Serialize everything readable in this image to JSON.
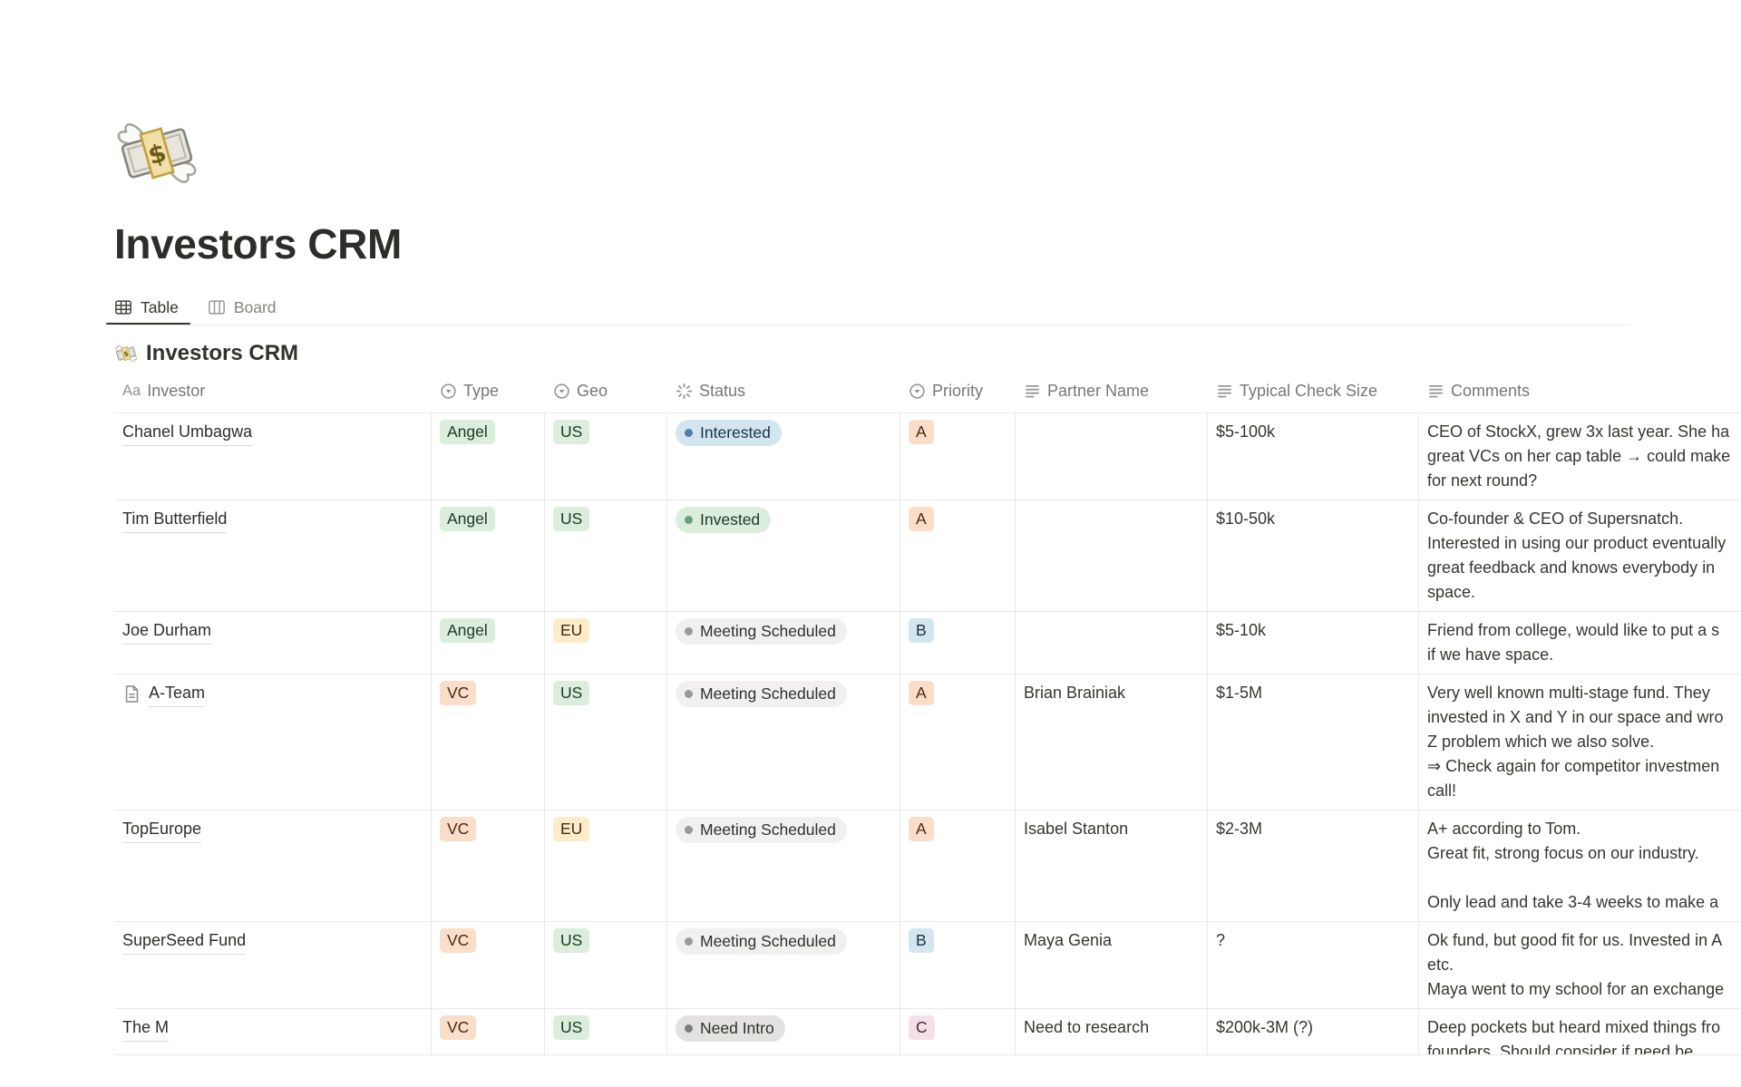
{
  "page": {
    "icon": "money-with-wings-emoji",
    "title": "Investors CRM"
  },
  "tabs": [
    {
      "label": "Table",
      "icon": "table-view-icon",
      "active": true
    },
    {
      "label": "Board",
      "icon": "board-view-icon",
      "active": false
    }
  ],
  "database": {
    "icon": "money-with-wings-emoji",
    "title": "Investors CRM",
    "columns": [
      {
        "label": "Investor",
        "icon": "title-aa-icon"
      },
      {
        "label": "Type",
        "icon": "select-icon"
      },
      {
        "label": "Geo",
        "icon": "select-icon"
      },
      {
        "label": "Status",
        "icon": "status-spinner-icon"
      },
      {
        "label": "Priority",
        "icon": "select-icon"
      },
      {
        "label": "Partner Name",
        "icon": "text-icon"
      },
      {
        "label": "Typical Check Size",
        "icon": "text-icon"
      },
      {
        "label": "Comments",
        "icon": "text-icon"
      }
    ],
    "rows": [
      {
        "investor": "Chanel Umbagwa",
        "has_page_icon": false,
        "type": {
          "label": "Angel",
          "color": "green"
        },
        "geo": {
          "label": "US",
          "color": "green"
        },
        "status": {
          "label": "Interested",
          "color": "blue"
        },
        "priority": {
          "label": "A",
          "color": "orange"
        },
        "partner": "",
        "check_size": "$5-100k",
        "comments": [
          "CEO of StockX, grew 3x last year. She ha",
          "great VCs on her cap table → could make",
          "for next round?"
        ]
      },
      {
        "investor": "Tim Butterfield",
        "has_page_icon": false,
        "type": {
          "label": "Angel",
          "color": "green"
        },
        "geo": {
          "label": "US",
          "color": "green"
        },
        "status": {
          "label": "Invested",
          "color": "green"
        },
        "priority": {
          "label": "A",
          "color": "orange"
        },
        "partner": "",
        "check_size": "$10-50k",
        "comments": [
          "Co-founder & CEO of Supersnatch.",
          "Interested in using our product eventually",
          "great feedback and knows everybody in",
          "space."
        ]
      },
      {
        "investor": "Joe Durham",
        "has_page_icon": false,
        "type": {
          "label": "Angel",
          "color": "green"
        },
        "geo": {
          "label": "EU",
          "color": "yellow"
        },
        "status": {
          "label": "Meeting Scheduled",
          "color": "lightgray"
        },
        "priority": {
          "label": "B",
          "color": "blue"
        },
        "partner": "",
        "check_size": "$5-10k",
        "comments": [
          "Friend from college, would like to put a s",
          "if we have space."
        ]
      },
      {
        "investor": "A-Team",
        "has_page_icon": true,
        "type": {
          "label": "VC",
          "color": "orange"
        },
        "geo": {
          "label": "US",
          "color": "green"
        },
        "status": {
          "label": "Meeting Scheduled",
          "color": "lightgray"
        },
        "priority": {
          "label": "A",
          "color": "orange"
        },
        "partner": "Brian Brainiak",
        "check_size": "$1-5M",
        "comments": [
          "Very well known multi-stage fund. They",
          "invested in X and Y in our space and wro",
          "Z problem which we also solve.",
          "⇒ Check again for competitor investmen",
          "call!"
        ]
      },
      {
        "investor": "TopEurope",
        "has_page_icon": false,
        "type": {
          "label": "VC",
          "color": "orange"
        },
        "geo": {
          "label": "EU",
          "color": "yellow"
        },
        "status": {
          "label": "Meeting Scheduled",
          "color": "lightgray"
        },
        "priority": {
          "label": "A",
          "color": "orange"
        },
        "partner": "Isabel Stanton",
        "check_size": "$2-3M",
        "comments": [
          "A+ according to Tom.",
          "Great fit, strong focus on our industry.",
          "",
          "Only lead and take 3-4 weeks to make a"
        ]
      },
      {
        "investor": "SuperSeed Fund",
        "has_page_icon": false,
        "type": {
          "label": "VC",
          "color": "orange"
        },
        "geo": {
          "label": "US",
          "color": "green"
        },
        "status": {
          "label": "Meeting Scheduled",
          "color": "lightgray"
        },
        "priority": {
          "label": "B",
          "color": "blue"
        },
        "partner": "Maya Genia",
        "check_size": "?",
        "comments": [
          "Ok fund, but good fit for us. Invested in A",
          "etc.",
          "Maya went to my school for an exchange"
        ]
      },
      {
        "investor": "The M",
        "has_page_icon": false,
        "type": {
          "label": "VC",
          "color": "orange"
        },
        "geo": {
          "label": "US",
          "color": "green"
        },
        "status": {
          "label": "Need Intro",
          "color": "gray"
        },
        "priority": {
          "label": "C",
          "color": "pink"
        },
        "partner": "Need to research",
        "check_size": "$200k-3M (?)",
        "comments": [
          "Deep pockets but heard mixed things fro",
          "founders. Should consider if need be."
        ]
      }
    ]
  },
  "colors": {
    "text": "#37352F",
    "muted": "#787774",
    "icon-gray": "#91918E",
    "border": "#E9E9E7",
    "badge-green-bg": "#DBEDDB",
    "badge-green-text": "#1C3829",
    "badge-orange-bg": "#FADEC9",
    "badge-orange-text": "#49290E",
    "badge-yellow-bg": "#FDECC8",
    "badge-yellow-text": "#402C1B",
    "badge-blue-bg": "#D3E5EF",
    "badge-blue-text": "#183347",
    "badge-pink-bg": "#F5E0E9",
    "badge-pink-text": "#4C2337",
    "pill-lightgray-bg": "#F1F0EF",
    "pill-gray-bg": "#E3E2E0",
    "pill-gray-text": "#32302C",
    "dot-blue": "#527DA5",
    "dot-green": "#6C9B7D",
    "dot-gray": "#9B9A97",
    "dot-darkgray": "#7E7D7A"
  }
}
